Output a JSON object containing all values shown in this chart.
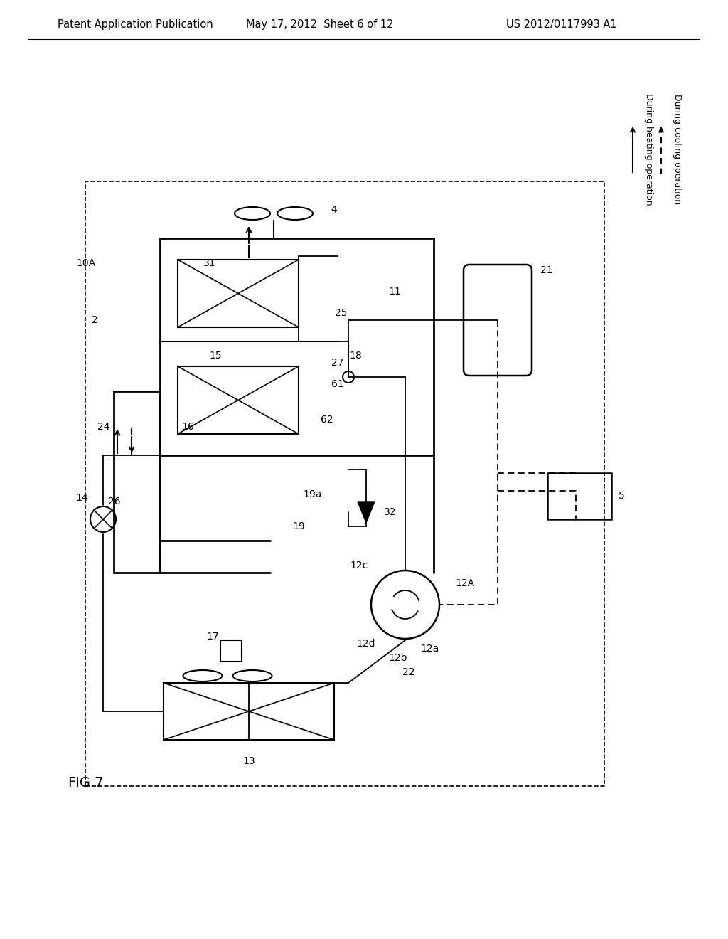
{
  "bg_color": "#ffffff",
  "header_left": "Patent Application Publication",
  "header_mid": "May 17, 2012  Sheet 6 of 12",
  "header_right": "US 2012/0117993 A1",
  "fig_label": "FIG.7",
  "legend_solid": "During heating operation",
  "legend_dashed": "During cooling operation"
}
